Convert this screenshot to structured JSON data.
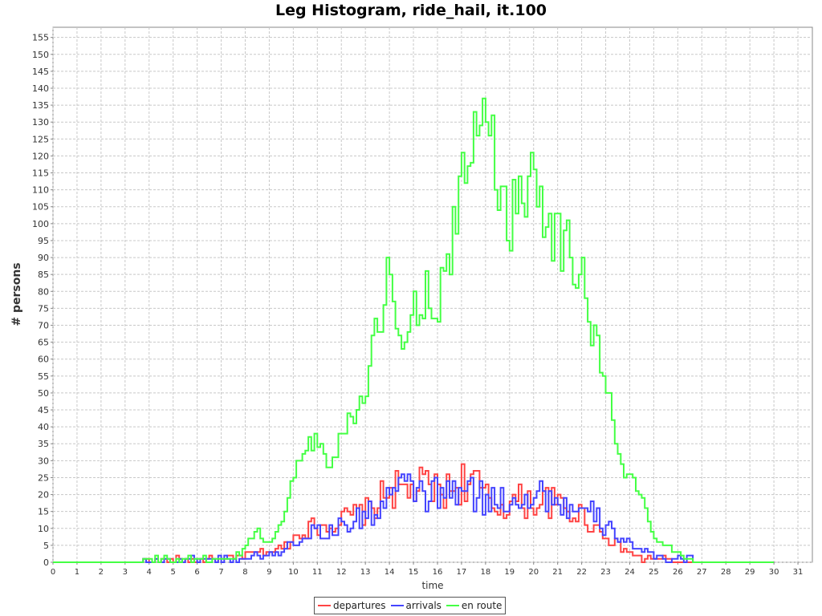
{
  "chart_data": {
    "type": "line",
    "title": "Leg Histogram, ride_hail, it.100",
    "xlabel": "time",
    "ylabel": "# persons",
    "xlim": [
      0,
      31.6
    ],
    "ylim": [
      0,
      158
    ],
    "x_ticks": [
      "0",
      "1",
      "2",
      "3",
      "4",
      "5",
      "6",
      "7",
      "8",
      "9",
      "10",
      "11",
      "12",
      "13",
      "14",
      "15",
      "16",
      "17",
      "18",
      "19",
      "20",
      "21",
      "22",
      "23",
      "24",
      "25",
      "26",
      "27",
      "28",
      "29",
      "30",
      "31"
    ],
    "y_ticks": [
      "0",
      "5",
      "10",
      "15",
      "20",
      "25",
      "30",
      "35",
      "40",
      "45",
      "50",
      "55",
      "60",
      "65",
      "70",
      "75",
      "80",
      "85",
      "90",
      "95",
      "100",
      "105",
      "110",
      "115",
      "120",
      "125",
      "130",
      "135",
      "140",
      "145",
      "150",
      "155"
    ],
    "grid": true,
    "legend_position": "bottom",
    "bin_width_hours": 0.125,
    "series": [
      {
        "name": "departures",
        "color": "#ff4444",
        "step_x": [
          0,
          7.5,
          8,
          8.5,
          9,
          9.5,
          10,
          10.5,
          11,
          11.5,
          12,
          12.5,
          13,
          13.5,
          14,
          14.5,
          15,
          15.5,
          16,
          16.5,
          17,
          17.5,
          18,
          18.5,
          19,
          19.5,
          20,
          20.5,
          21,
          21.5,
          22,
          22.5,
          23,
          23.5,
          24,
          24.5,
          25,
          25.5,
          26,
          26.5,
          27,
          30
        ],
        "step_y": [
          0,
          1,
          2,
          3,
          3,
          4,
          7,
          10,
          11,
          11,
          12,
          14,
          15,
          17,
          22,
          21,
          21,
          23,
          21,
          21,
          24,
          24,
          19,
          16,
          18,
          18,
          18,
          18,
          17,
          15,
          14,
          11,
          8,
          5,
          3,
          1,
          1,
          1,
          0,
          0,
          0,
          0
        ]
      },
      {
        "name": "arrivals",
        "color": "#4444ff",
        "step_x": [
          0,
          7.5,
          8,
          8.5,
          9,
          9.5,
          10,
          10.5,
          11,
          11.5,
          12,
          12.5,
          13,
          13.5,
          14,
          14.5,
          15,
          15.5,
          16,
          16.5,
          17,
          17.5,
          18,
          18.5,
          19,
          19.5,
          20,
          20.5,
          21,
          21.5,
          22,
          22.5,
          23,
          23.5,
          24,
          24.5,
          25,
          25.5,
          26,
          26.5,
          27,
          30
        ],
        "step_y": [
          0,
          1,
          1,
          2,
          2,
          3,
          6,
          8,
          10,
          8,
          11,
          12,
          14,
          15,
          20,
          21,
          22,
          20,
          20,
          20,
          21,
          20,
          18,
          18,
          19,
          20,
          19,
          21,
          18,
          16,
          14,
          14,
          10,
          8,
          6,
          3,
          2,
          1,
          1,
          1,
          0,
          0
        ]
      },
      {
        "name": "en route",
        "color": "#44ff44",
        "step_x": [
          0,
          7.5,
          8,
          8.5,
          9,
          9.5,
          10,
          10.5,
          11,
          11.5,
          12,
          12.5,
          13,
          13.5,
          14,
          14.5,
          15,
          15.5,
          16,
          16.5,
          17,
          17.5,
          18,
          18.5,
          19,
          19.5,
          20,
          20.5,
          21,
          21.5,
          22,
          22.5,
          23,
          23.5,
          24,
          24.5,
          25,
          25.5,
          26,
          26.5,
          27,
          30
        ],
        "step_y": [
          0,
          1,
          4,
          10,
          5,
          12,
          24,
          35,
          36,
          28,
          37,
          45,
          50,
          68,
          85,
          60,
          75,
          80,
          75,
          90,
          108,
          125,
          140,
          115,
          100,
          110,
          118,
          105,
          95,
          93,
          85,
          68,
          55,
          32,
          25,
          20,
          8,
          5,
          3,
          1,
          0,
          0
        ]
      }
    ]
  }
}
